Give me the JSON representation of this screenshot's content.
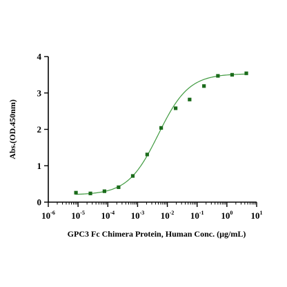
{
  "chart_data": {
    "type": "scatter",
    "title": "",
    "xlabel": "GPC3 Fc Chimera Protein, Human Conc. (µg/mL)",
    "ylabel": "Abs.(OD.450nm)",
    "xscale": "log",
    "xlim": [
      1e-06,
      10
    ],
    "ylim": [
      0,
      4
    ],
    "x_ticks": [
      {
        "base": "10",
        "exp": "-6"
      },
      {
        "base": "10",
        "exp": "-5"
      },
      {
        "base": "10",
        "exp": "-4"
      },
      {
        "base": "10",
        "exp": "-3"
      },
      {
        "base": "10",
        "exp": "-2"
      },
      {
        "base": "10",
        "exp": "-1"
      },
      {
        "base": "10",
        "exp": "0"
      },
      {
        "base": "10",
        "exp": "1"
      }
    ],
    "y_ticks": [
      "0",
      "1",
      "2",
      "3",
      "4"
    ],
    "grid": false,
    "legend": "none",
    "marker_color": "#1b6b1b",
    "line_color": "#3f9a3f",
    "series": [
      {
        "x": [
          8.5e-06,
          2.6e-05,
          7.7e-05,
          0.00023,
          0.00069,
          0.0021,
          0.0062,
          0.019,
          0.056,
          0.17,
          0.5,
          1.5,
          4.5
        ],
        "y": [
          0.26,
          0.24,
          0.3,
          0.41,
          0.72,
          1.31,
          2.04,
          2.58,
          2.82,
          3.19,
          3.47,
          3.5,
          3.54
        ]
      }
    ],
    "fit": {
      "bottom": 0.2,
      "top": 3.53,
      "ec50": 0.005,
      "hill": 0.85
    }
  }
}
